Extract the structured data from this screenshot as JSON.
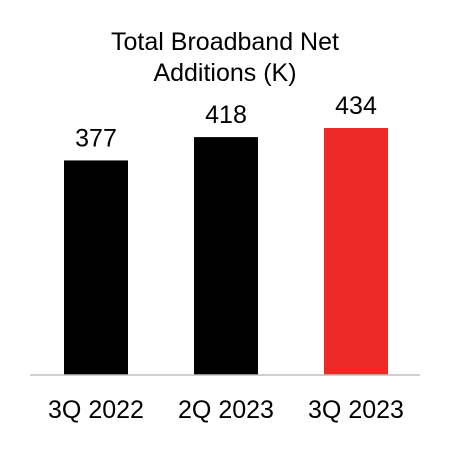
{
  "chart_data": {
    "type": "bar",
    "title": [
      "Total Broadband Net",
      "Additions (K)"
    ],
    "categories": [
      "3Q 2022",
      "2Q 2023",
      "3Q 2023"
    ],
    "values": [
      377,
      418,
      434
    ],
    "data_labels": [
      "377",
      "418",
      "434"
    ],
    "colors": [
      "#000000",
      "#000000",
      "#ee2a26"
    ],
    "axis_color": "#bfbfbf",
    "ylim": [
      0,
      434
    ],
    "grid": false,
    "legend": "none",
    "xlabel": "",
    "ylabel": ""
  }
}
